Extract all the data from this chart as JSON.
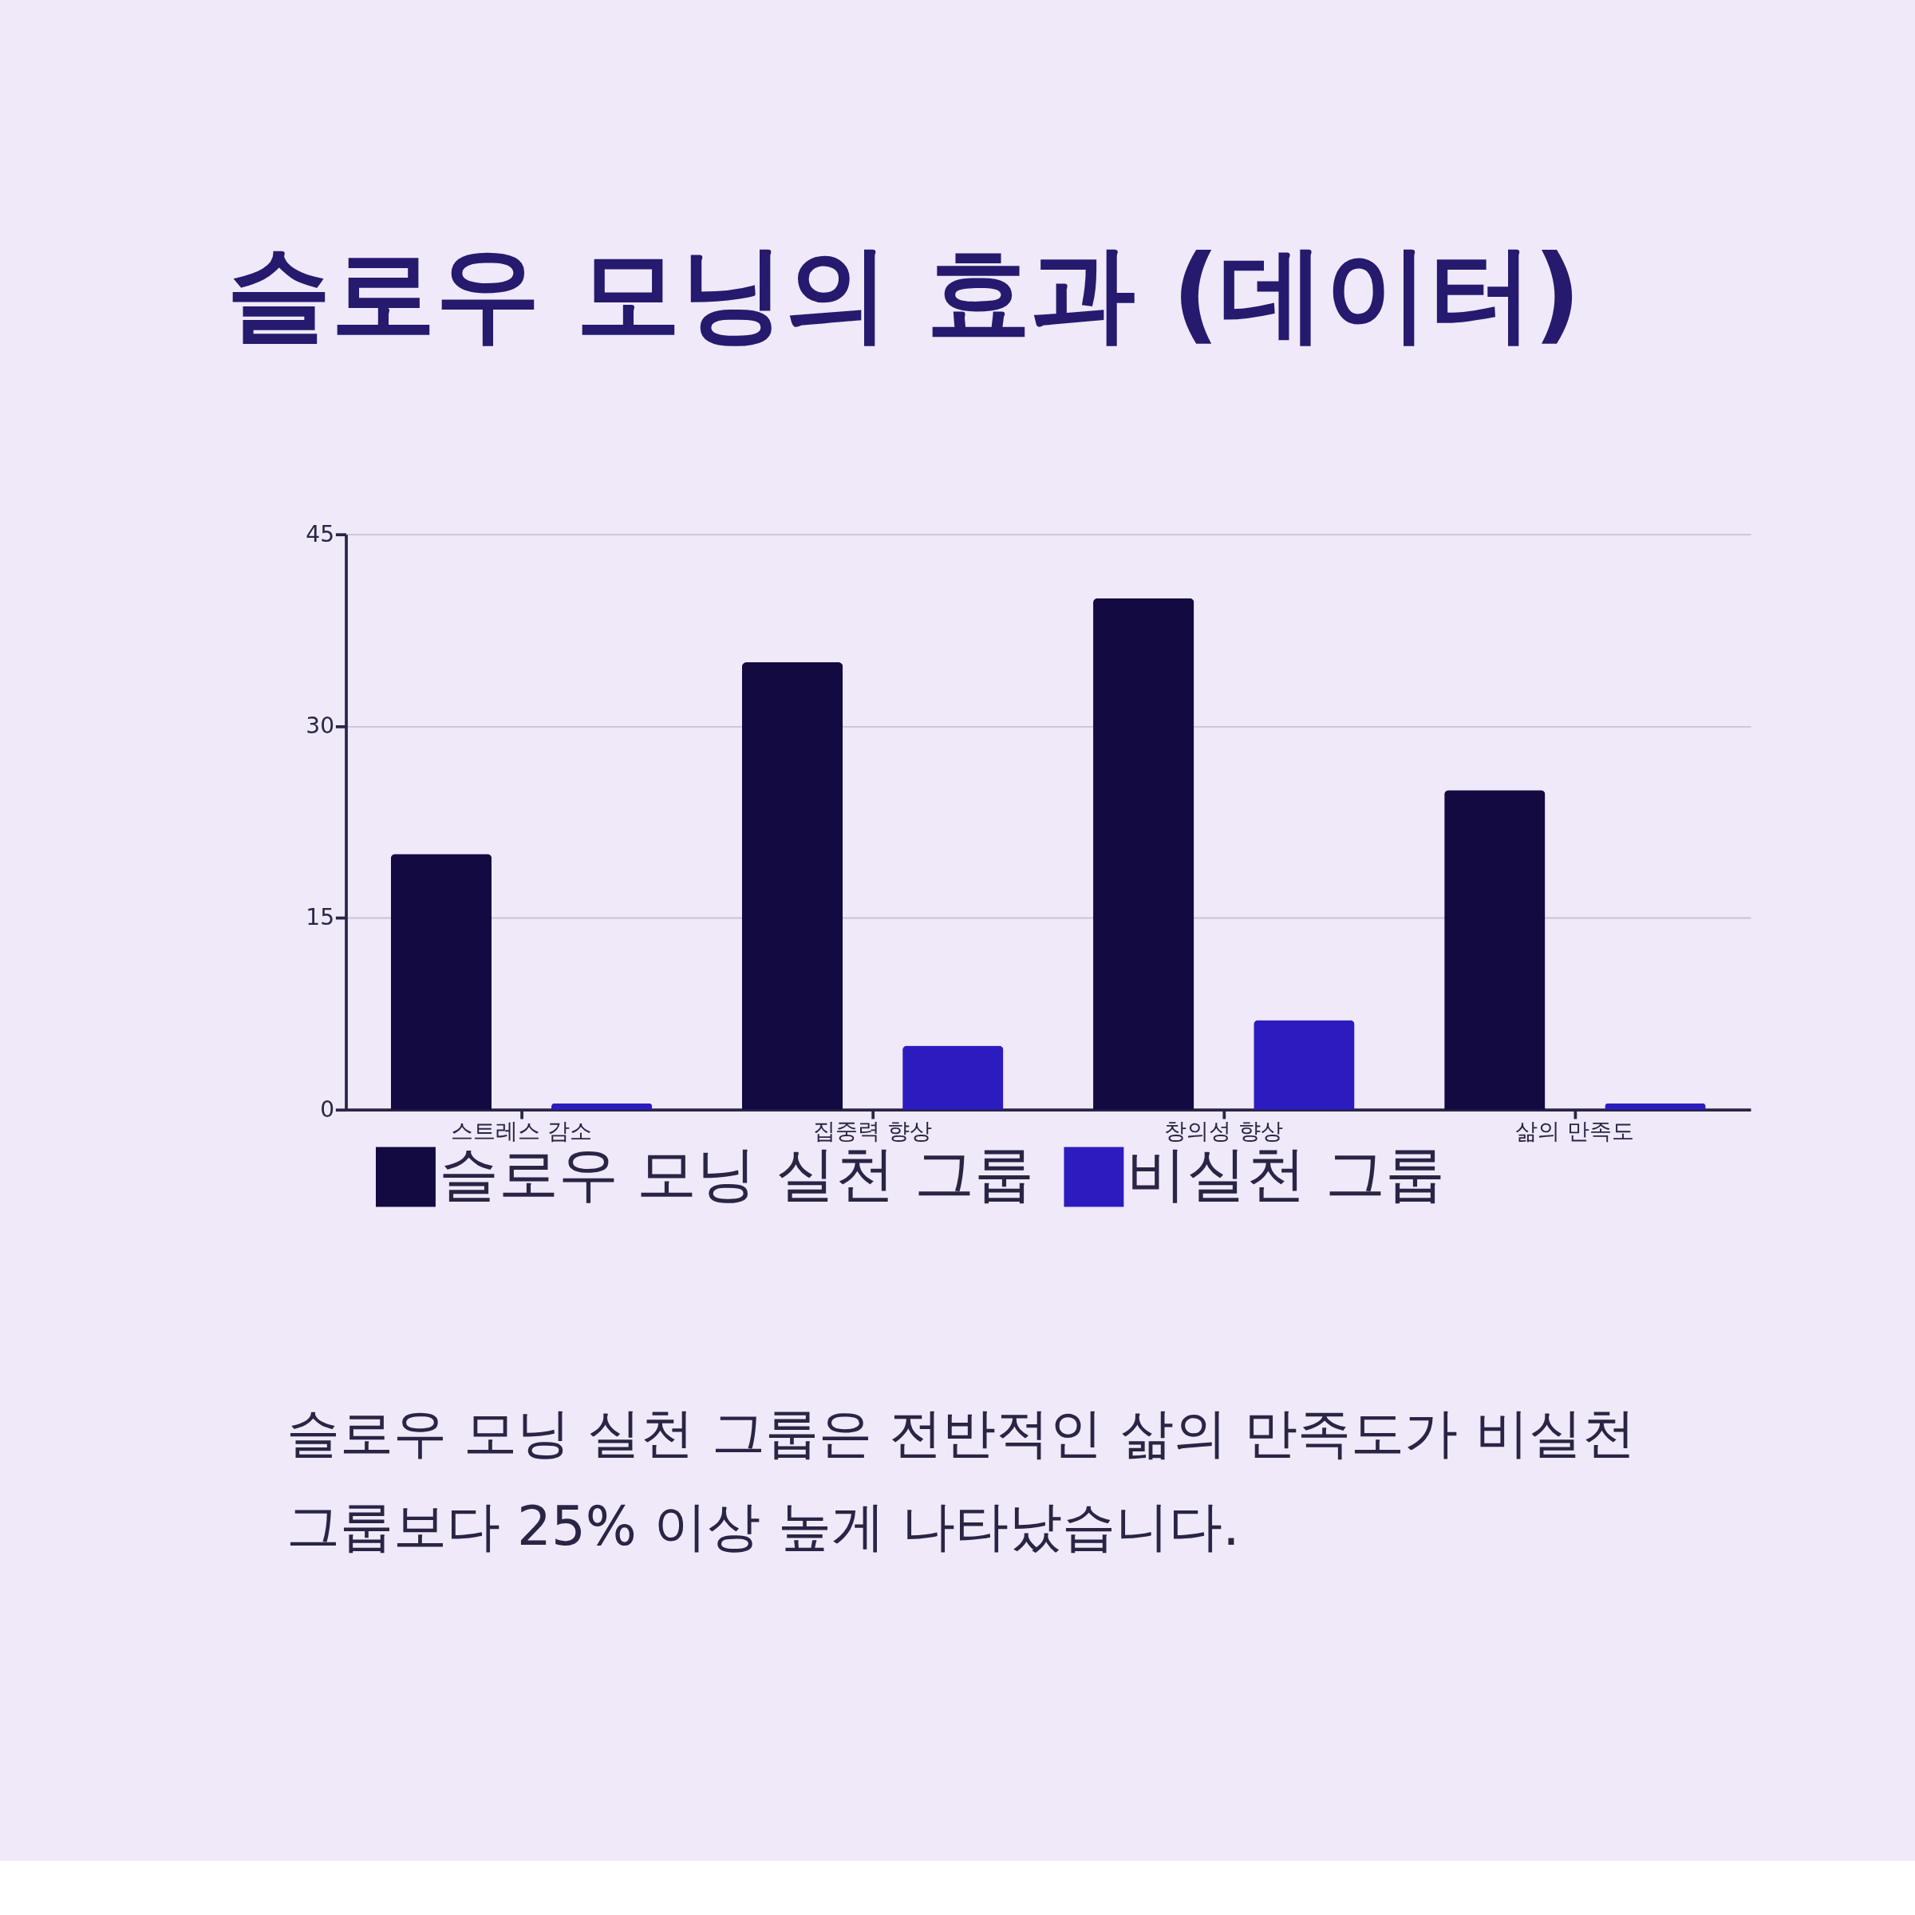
{
  "chart_data": {
    "type": "bar",
    "title": "슬로우 모닝의 효과 (데이터)",
    "categories": [
      "스트레스 감소",
      "집중력 향상",
      "창의성 향상",
      "삶의 만족도"
    ],
    "series": [
      {
        "name": "슬로우 모닝 실천 그룹",
        "color": "#120a40",
        "values": [
          20,
          35,
          40,
          25
        ]
      },
      {
        "name": "비실천 그룹",
        "color": "#2c1cbf",
        "values": [
          0.5,
          5,
          7,
          0.5
        ]
      }
    ],
    "ylim": [
      0,
      45
    ],
    "yticks": [
      0,
      15,
      30,
      45
    ],
    "grid": "y",
    "legend": "bottom left",
    "annotations": [
      "슬로우 모닝 실천 그룹은 전반적인 삶의 만족도가 비실천\n그룹보다 25% 이상 높게 나타났습니다."
    ]
  }
}
